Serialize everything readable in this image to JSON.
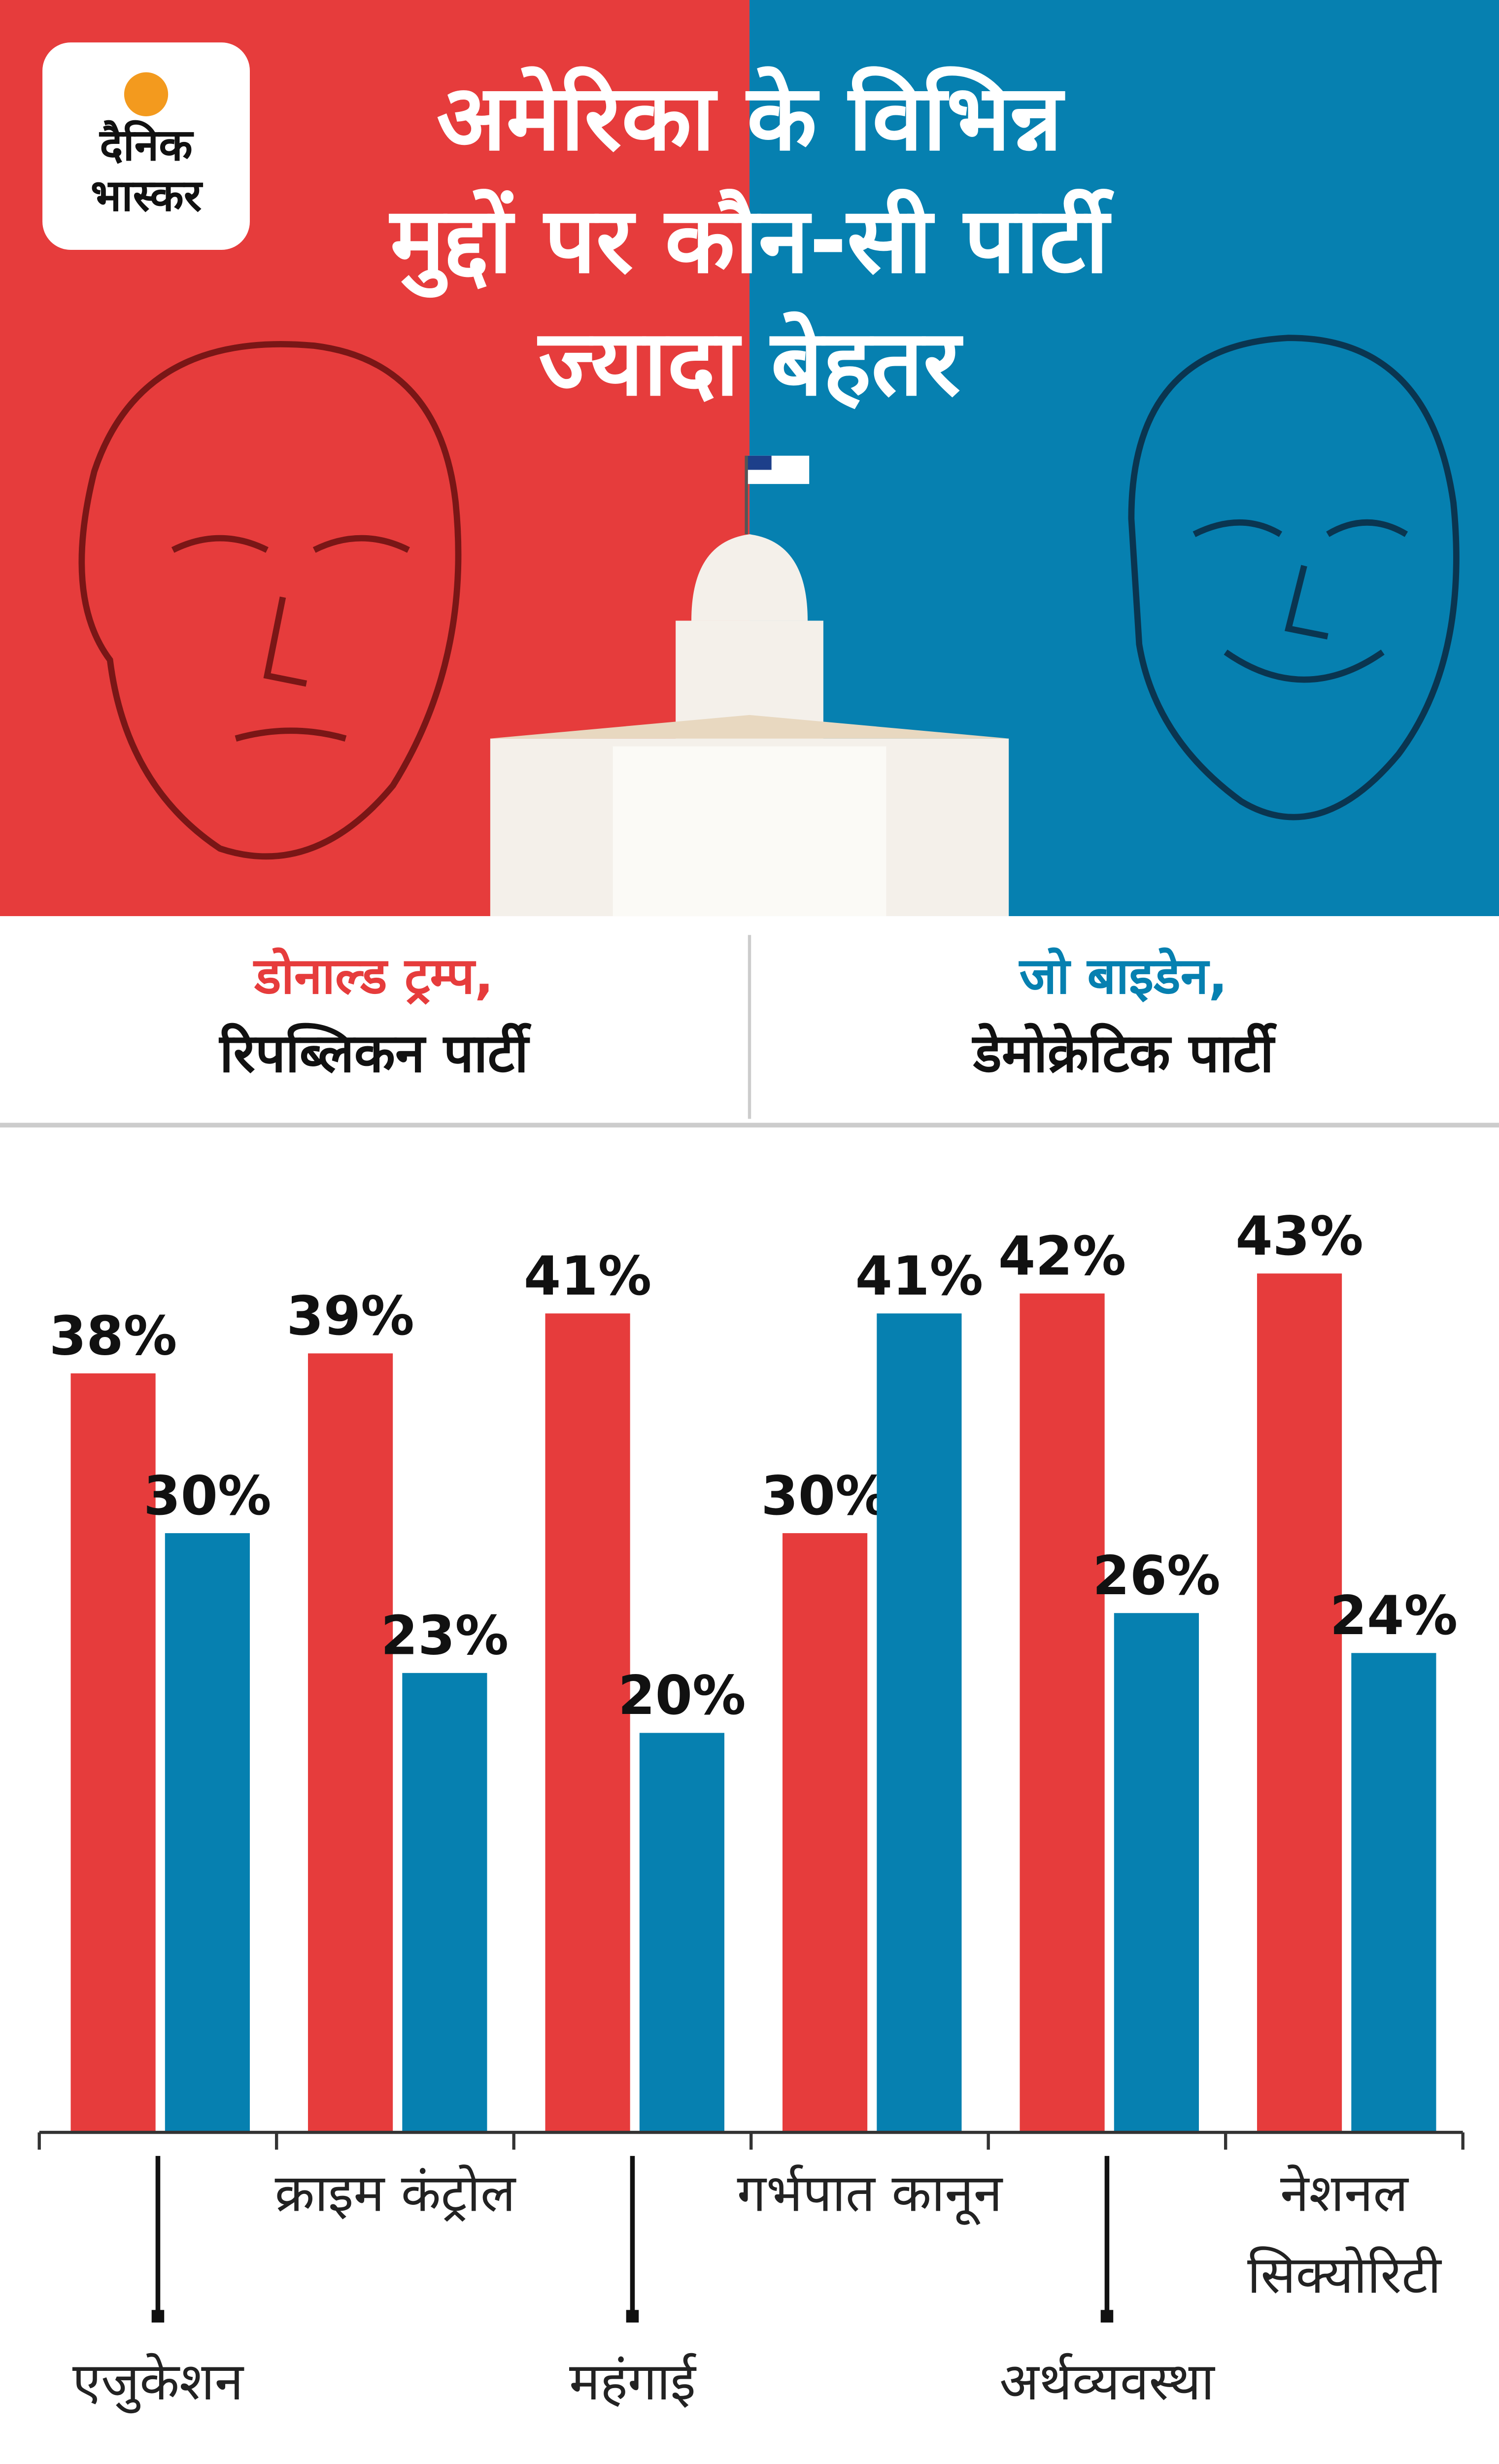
{
  "logo": [
    "दैनिक",
    "भास्कर"
  ],
  "chart_data": {
    "type": "bar",
    "title": [
      "अमेरिका के विभिन्न",
      "मुद्दों पर कौन-सी पार्टी",
      "ज्यादा बेहतर"
    ],
    "categories": [
      "एजुकेशन",
      "क्राइम कंट्रोल",
      "महंगाई",
      "गर्भपात कानून",
      "अर्थव्यवस्था",
      "नेशनल सिक्योरिटी"
    ],
    "series": [
      {
        "name": "डोनाल्ड ट्रम्प,",
        "party": "रिपब्लिकन पार्टी",
        "color": "#e63c3c",
        "values": [
          38,
          39,
          41,
          30,
          42,
          43
        ],
        "value_labels": [
          "38%",
          "39%",
          "41%",
          "30%",
          "42%",
          "43%"
        ]
      },
      {
        "name": "जो बाइडेन,",
        "party": "डेमोक्रेटिक पार्टी",
        "color": "#0680b0",
        "values": [
          30,
          23,
          20,
          41,
          26,
          24
        ],
        "value_labels": [
          "30%",
          "23%",
          "20%",
          "41%",
          "26%",
          "24%"
        ]
      }
    ],
    "ylim": [
      0,
      45
    ]
  }
}
